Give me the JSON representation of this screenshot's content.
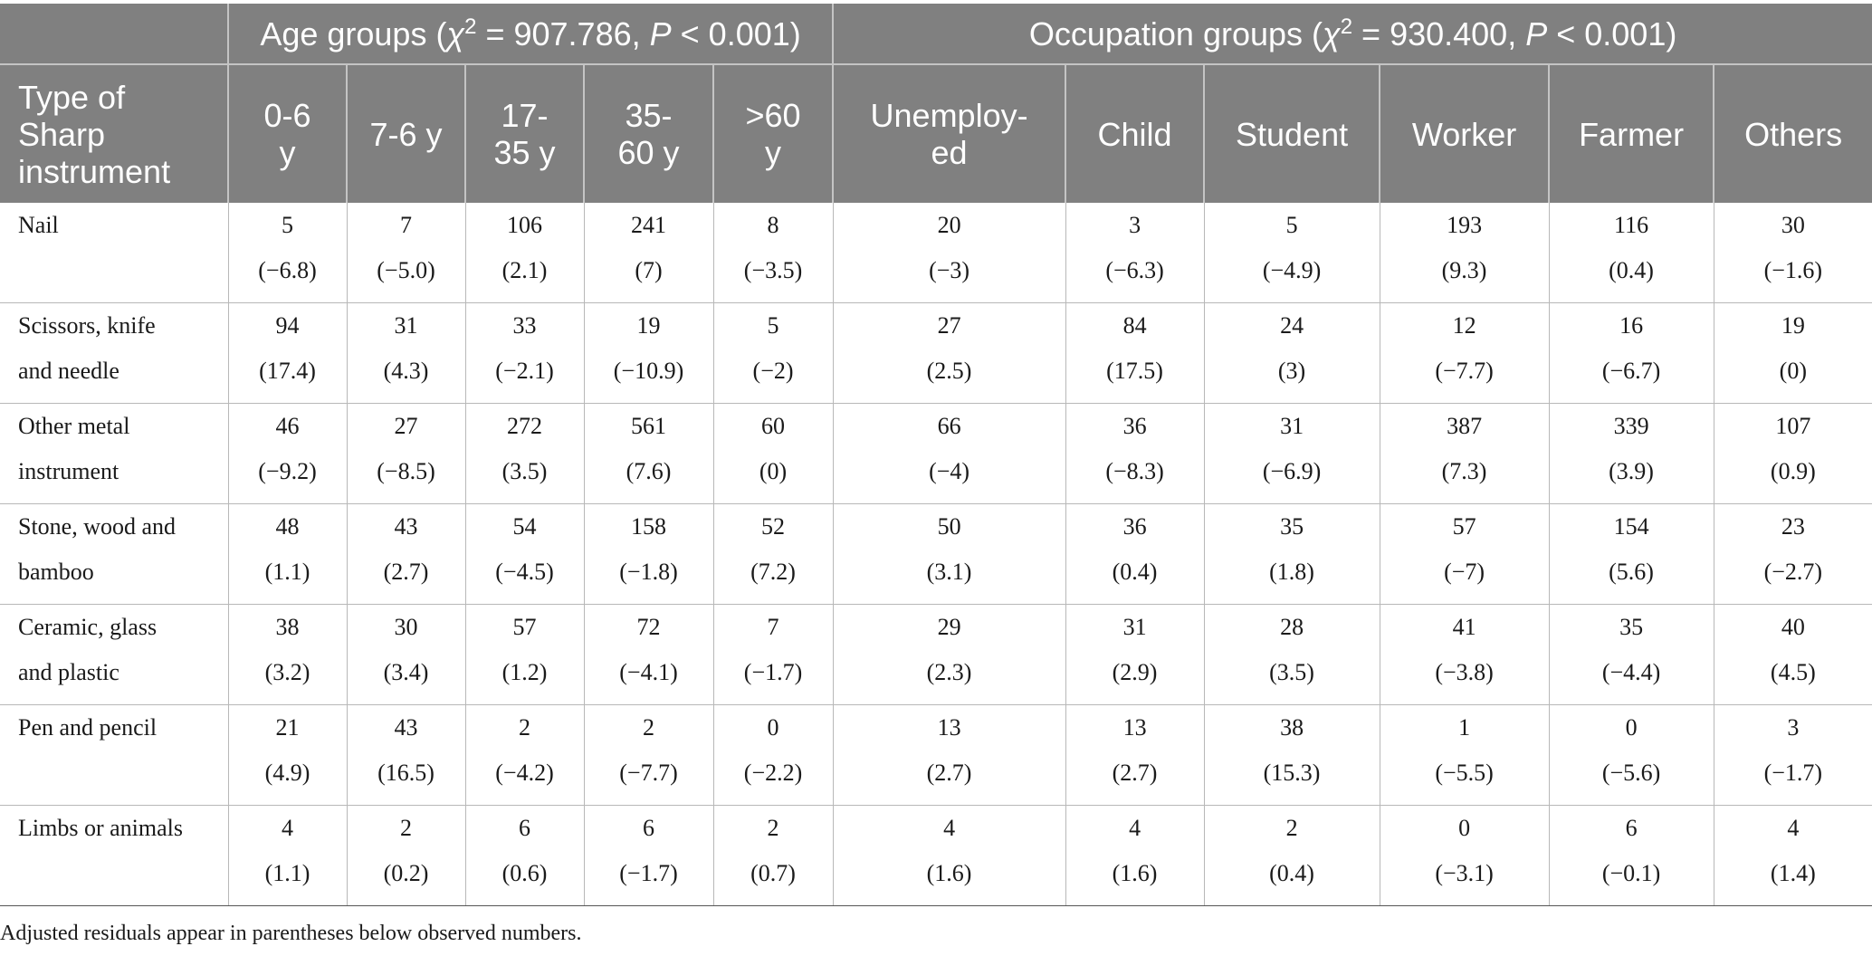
{
  "groups": {
    "age": {
      "prefix": "Age groups (",
      "chi": "χ",
      "sup": "2",
      "mid": " = 907.786, ",
      "p": "P",
      "suffix": " < 0.001)"
    },
    "occupation": {
      "prefix": "Occupation groups (",
      "chi": "χ",
      "sup": "2",
      "mid": " = 930.400, ",
      "p": "P",
      "suffix": " < 0.001)"
    }
  },
  "columns": {
    "type": [
      "Type of",
      "Sharp",
      "instrument"
    ],
    "age_0_6": [
      "0-6",
      "y"
    ],
    "age_7_6": [
      "7-6 y"
    ],
    "age_17_35": [
      "17-",
      "35 y"
    ],
    "age_35_60": [
      "35-",
      "60 y"
    ],
    "age_60": [
      ">60",
      "y"
    ],
    "unemployed": [
      "Unemploy-",
      "ed"
    ],
    "child": [
      "Child"
    ],
    "student": [
      "Student"
    ],
    "worker": [
      "Worker"
    ],
    "farmer": [
      "Farmer"
    ],
    "others": [
      "Others"
    ]
  },
  "rows": [
    {
      "label": [
        "Nail"
      ],
      "cells": [
        [
          "5",
          "(−6.8)"
        ],
        [
          "7",
          "(−5.0)"
        ],
        [
          "106",
          "(2.1)"
        ],
        [
          "241",
          "(7)"
        ],
        [
          "8",
          "(−3.5)"
        ],
        [
          "20",
          "(−3)"
        ],
        [
          "3",
          "(−6.3)"
        ],
        [
          "5",
          "(−4.9)"
        ],
        [
          "193",
          "(9.3)"
        ],
        [
          "116",
          "(0.4)"
        ],
        [
          "30",
          "(−1.6)"
        ]
      ]
    },
    {
      "label": [
        "Scissors, knife",
        "and needle"
      ],
      "cells": [
        [
          "94",
          "(17.4)"
        ],
        [
          "31",
          "(4.3)"
        ],
        [
          "33",
          "(−2.1)"
        ],
        [
          "19",
          "(−10.9)"
        ],
        [
          "5",
          "(−2)"
        ],
        [
          "27",
          "(2.5)"
        ],
        [
          "84",
          "(17.5)"
        ],
        [
          "24",
          "(3)"
        ],
        [
          "12",
          "(−7.7)"
        ],
        [
          "16",
          "(−6.7)"
        ],
        [
          "19",
          "(0)"
        ]
      ]
    },
    {
      "label": [
        "Other metal",
        "instrument"
      ],
      "cells": [
        [
          "46",
          "(−9.2)"
        ],
        [
          "27",
          "(−8.5)"
        ],
        [
          "272",
          "(3.5)"
        ],
        [
          "561",
          "(7.6)"
        ],
        [
          "60",
          "(0)"
        ],
        [
          "66",
          "(−4)"
        ],
        [
          "36",
          "(−8.3)"
        ],
        [
          "31",
          "(−6.9)"
        ],
        [
          "387",
          "(7.3)"
        ],
        [
          "339",
          "(3.9)"
        ],
        [
          "107",
          "(0.9)"
        ]
      ]
    },
    {
      "label": [
        "Stone, wood and",
        "bamboo"
      ],
      "cells": [
        [
          "48",
          "(1.1)"
        ],
        [
          "43",
          "(2.7)"
        ],
        [
          "54",
          "(−4.5)"
        ],
        [
          "158",
          "(−1.8)"
        ],
        [
          "52",
          "(7.2)"
        ],
        [
          "50",
          "(3.1)"
        ],
        [
          "36",
          "(0.4)"
        ],
        [
          "35",
          "(1.8)"
        ],
        [
          "57",
          "(−7)"
        ],
        [
          "154",
          "(5.6)"
        ],
        [
          "23",
          "(−2.7)"
        ]
      ]
    },
    {
      "label": [
        "Ceramic, glass",
        "and plastic"
      ],
      "cells": [
        [
          "38",
          "(3.2)"
        ],
        [
          "30",
          "(3.4)"
        ],
        [
          "57",
          "(1.2)"
        ],
        [
          "72",
          "(−4.1)"
        ],
        [
          "7",
          "(−1.7)"
        ],
        [
          "29",
          "(2.3)"
        ],
        [
          "31",
          "(2.9)"
        ],
        [
          "28",
          "(3.5)"
        ],
        [
          "41",
          "(−3.8)"
        ],
        [
          "35",
          "(−4.4)"
        ],
        [
          "40",
          "(4.5)"
        ]
      ]
    },
    {
      "label": [
        "Pen and pencil"
      ],
      "cells": [
        [
          "21",
          "(4.9)"
        ],
        [
          "43",
          "(16.5)"
        ],
        [
          "2",
          "(−4.2)"
        ],
        [
          "2",
          "(−7.7)"
        ],
        [
          "0",
          "(−2.2)"
        ],
        [
          "13",
          "(2.7)"
        ],
        [
          "13",
          "(2.7)"
        ],
        [
          "38",
          "(15.3)"
        ],
        [
          "1",
          "(−5.5)"
        ],
        [
          "0",
          "(−5.6)"
        ],
        [
          "3",
          "(−1.7)"
        ]
      ]
    },
    {
      "label": [
        "Limbs or animals"
      ],
      "cells": [
        [
          "4",
          "(1.1)"
        ],
        [
          "2",
          "(0.2)"
        ],
        [
          "6",
          "(0.6)"
        ],
        [
          "6",
          "(−1.7)"
        ],
        [
          "2",
          "(0.7)"
        ],
        [
          "4",
          "(1.6)"
        ],
        [
          "4",
          "(1.6)"
        ],
        [
          "2",
          "(0.4)"
        ],
        [
          "0",
          "(−3.1)"
        ],
        [
          "6",
          "(−0.1)"
        ],
        [
          "4",
          "(1.4)"
        ]
      ]
    }
  ],
  "footnote": "Adjusted residuals appear in parentheses below observed numbers."
}
